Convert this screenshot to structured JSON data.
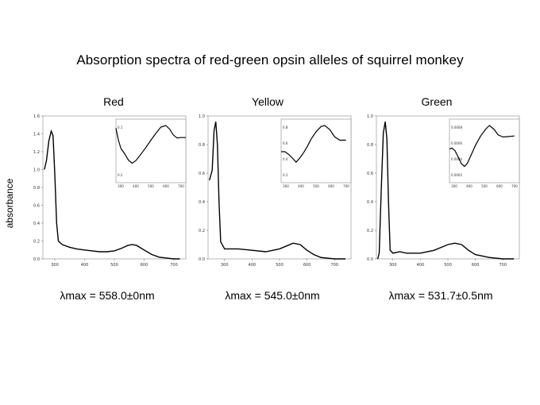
{
  "title": "Absorption spectra of red-green opsin alleles of squirrel monkey",
  "ylabel": "absorbance",
  "chart_data": [
    {
      "type": "line",
      "name": "Red",
      "lambda_text": "λmax = 558.0±0nm",
      "xticks": [
        300,
        400,
        500,
        600,
        700
      ],
      "yticks": [
        "0.0",
        "0.2",
        "0.4",
        "0.6",
        "0.8",
        "1.0",
        "1.2",
        "1.4",
        "1.6"
      ],
      "xlim": [
        260,
        740
      ],
      "ylim": [
        0,
        1.6
      ],
      "points": [
        [
          265,
          1.0
        ],
        [
          272,
          1.1
        ],
        [
          280,
          1.32
        ],
        [
          288,
          1.43
        ],
        [
          294,
          1.38
        ],
        [
          300,
          0.95
        ],
        [
          306,
          0.4
        ],
        [
          312,
          0.2
        ],
        [
          325,
          0.16
        ],
        [
          350,
          0.13
        ],
        [
          375,
          0.11
        ],
        [
          400,
          0.1
        ],
        [
          425,
          0.09
        ],
        [
          450,
          0.08
        ],
        [
          475,
          0.08
        ],
        [
          500,
          0.09
        ],
        [
          525,
          0.12
        ],
        [
          545,
          0.15
        ],
        [
          560,
          0.16
        ],
        [
          575,
          0.15
        ],
        [
          600,
          0.1
        ],
        [
          625,
          0.05
        ],
        [
          650,
          0.02
        ],
        [
          675,
          0.01
        ],
        [
          700,
          0.0
        ],
        [
          720,
          0.0
        ]
      ],
      "inset": {
        "xticks": [
          "300",
          "400",
          "500",
          "600",
          "700"
        ],
        "yticks": [
          "0.1",
          "0.2"
        ],
        "points": [
          [
            300,
            0.95
          ],
          [
            310,
            0.72
          ],
          [
            320,
            0.56
          ],
          [
            335,
            0.46
          ],
          [
            350,
            0.34
          ],
          [
            365,
            0.28
          ],
          [
            380,
            0.33
          ],
          [
            400,
            0.45
          ],
          [
            420,
            0.58
          ],
          [
            440,
            0.72
          ],
          [
            460,
            0.85
          ],
          [
            480,
            0.97
          ],
          [
            500,
            1.0
          ],
          [
            515,
            0.93
          ],
          [
            530,
            0.82
          ],
          [
            545,
            0.76
          ],
          [
            560,
            0.77
          ],
          [
            580,
            0.77
          ]
        ]
      }
    },
    {
      "type": "line",
      "name": "Yellow",
      "lambda_text": "λmax = 545.0±0nm",
      "xticks": [
        300,
        400,
        500,
        600,
        700
      ],
      "yticks": [
        "0.0",
        "0.2",
        "0.4",
        "0.6",
        "0.8",
        "1.0"
      ],
      "xlim": [
        240,
        760
      ],
      "ylim": [
        0,
        1.0
      ],
      "points": [
        [
          245,
          0.55
        ],
        [
          255,
          0.62
        ],
        [
          262,
          0.9
        ],
        [
          268,
          0.96
        ],
        [
          274,
          0.8
        ],
        [
          280,
          0.4
        ],
        [
          286,
          0.12
        ],
        [
          300,
          0.07
        ],
        [
          350,
          0.07
        ],
        [
          400,
          0.06
        ],
        [
          450,
          0.05
        ],
        [
          500,
          0.07
        ],
        [
          525,
          0.09
        ],
        [
          550,
          0.11
        ],
        [
          575,
          0.1
        ],
        [
          600,
          0.06
        ],
        [
          625,
          0.03
        ],
        [
          650,
          0.01
        ],
        [
          700,
          0.0
        ],
        [
          740,
          0.0
        ]
      ],
      "inset": {
        "xticks": [
          "300",
          "400",
          "500",
          "600",
          "700"
        ],
        "yticks": [
          "0.8",
          "0.6",
          "0.4",
          "0.2"
        ],
        "points": [
          [
            300,
            0.5
          ],
          [
            315,
            0.5
          ],
          [
            330,
            0.45
          ],
          [
            345,
            0.38
          ],
          [
            360,
            0.3
          ],
          [
            375,
            0.38
          ],
          [
            390,
            0.48
          ],
          [
            405,
            0.6
          ],
          [
            420,
            0.74
          ],
          [
            440,
            0.88
          ],
          [
            460,
            0.98
          ],
          [
            475,
            1.0
          ],
          [
            495,
            0.92
          ],
          [
            515,
            0.78
          ],
          [
            535,
            0.72
          ],
          [
            560,
            0.72
          ]
        ]
      }
    },
    {
      "type": "line",
      "name": "Green",
      "lambda_text": "λmax = 531.7±0.5nm",
      "xticks": [
        300,
        400,
        500,
        600,
        700
      ],
      "yticks": [
        "0.0",
        "0.2",
        "0.4",
        "0.6",
        "0.8",
        "1.0"
      ],
      "xlim": [
        240,
        760
      ],
      "ylim": [
        0,
        1.0
      ],
      "points": [
        [
          245,
          0.0
        ],
        [
          250,
          0.04
        ],
        [
          258,
          0.5
        ],
        [
          265,
          0.88
        ],
        [
          272,
          0.96
        ],
        [
          278,
          0.84
        ],
        [
          284,
          0.4
        ],
        [
          290,
          0.06
        ],
        [
          300,
          0.04
        ],
        [
          325,
          0.05
        ],
        [
          350,
          0.04
        ],
        [
          400,
          0.04
        ],
        [
          450,
          0.06
        ],
        [
          500,
          0.1
        ],
        [
          525,
          0.11
        ],
        [
          550,
          0.1
        ],
        [
          575,
          0.06
        ],
        [
          600,
          0.03
        ],
        [
          650,
          0.01
        ],
        [
          700,
          0.0
        ],
        [
          740,
          0.0
        ]
      ],
      "inset": {
        "xticks": [
          "300",
          "400",
          "500",
          "600",
          "700"
        ],
        "yticks": [
          "0.0008",
          "0.0006",
          "0.0004",
          "0.0002"
        ],
        "points": [
          [
            300,
            0.55
          ],
          [
            310,
            0.57
          ],
          [
            322,
            0.52
          ],
          [
            335,
            0.4
          ],
          [
            348,
            0.27
          ],
          [
            360,
            0.22
          ],
          [
            372,
            0.28
          ],
          [
            388,
            0.45
          ],
          [
            405,
            0.63
          ],
          [
            425,
            0.8
          ],
          [
            445,
            0.93
          ],
          [
            460,
            1.0
          ],
          [
            478,
            0.93
          ],
          [
            495,
            0.82
          ],
          [
            515,
            0.78
          ],
          [
            540,
            0.79
          ],
          [
            560,
            0.8
          ]
        ]
      }
    }
  ]
}
